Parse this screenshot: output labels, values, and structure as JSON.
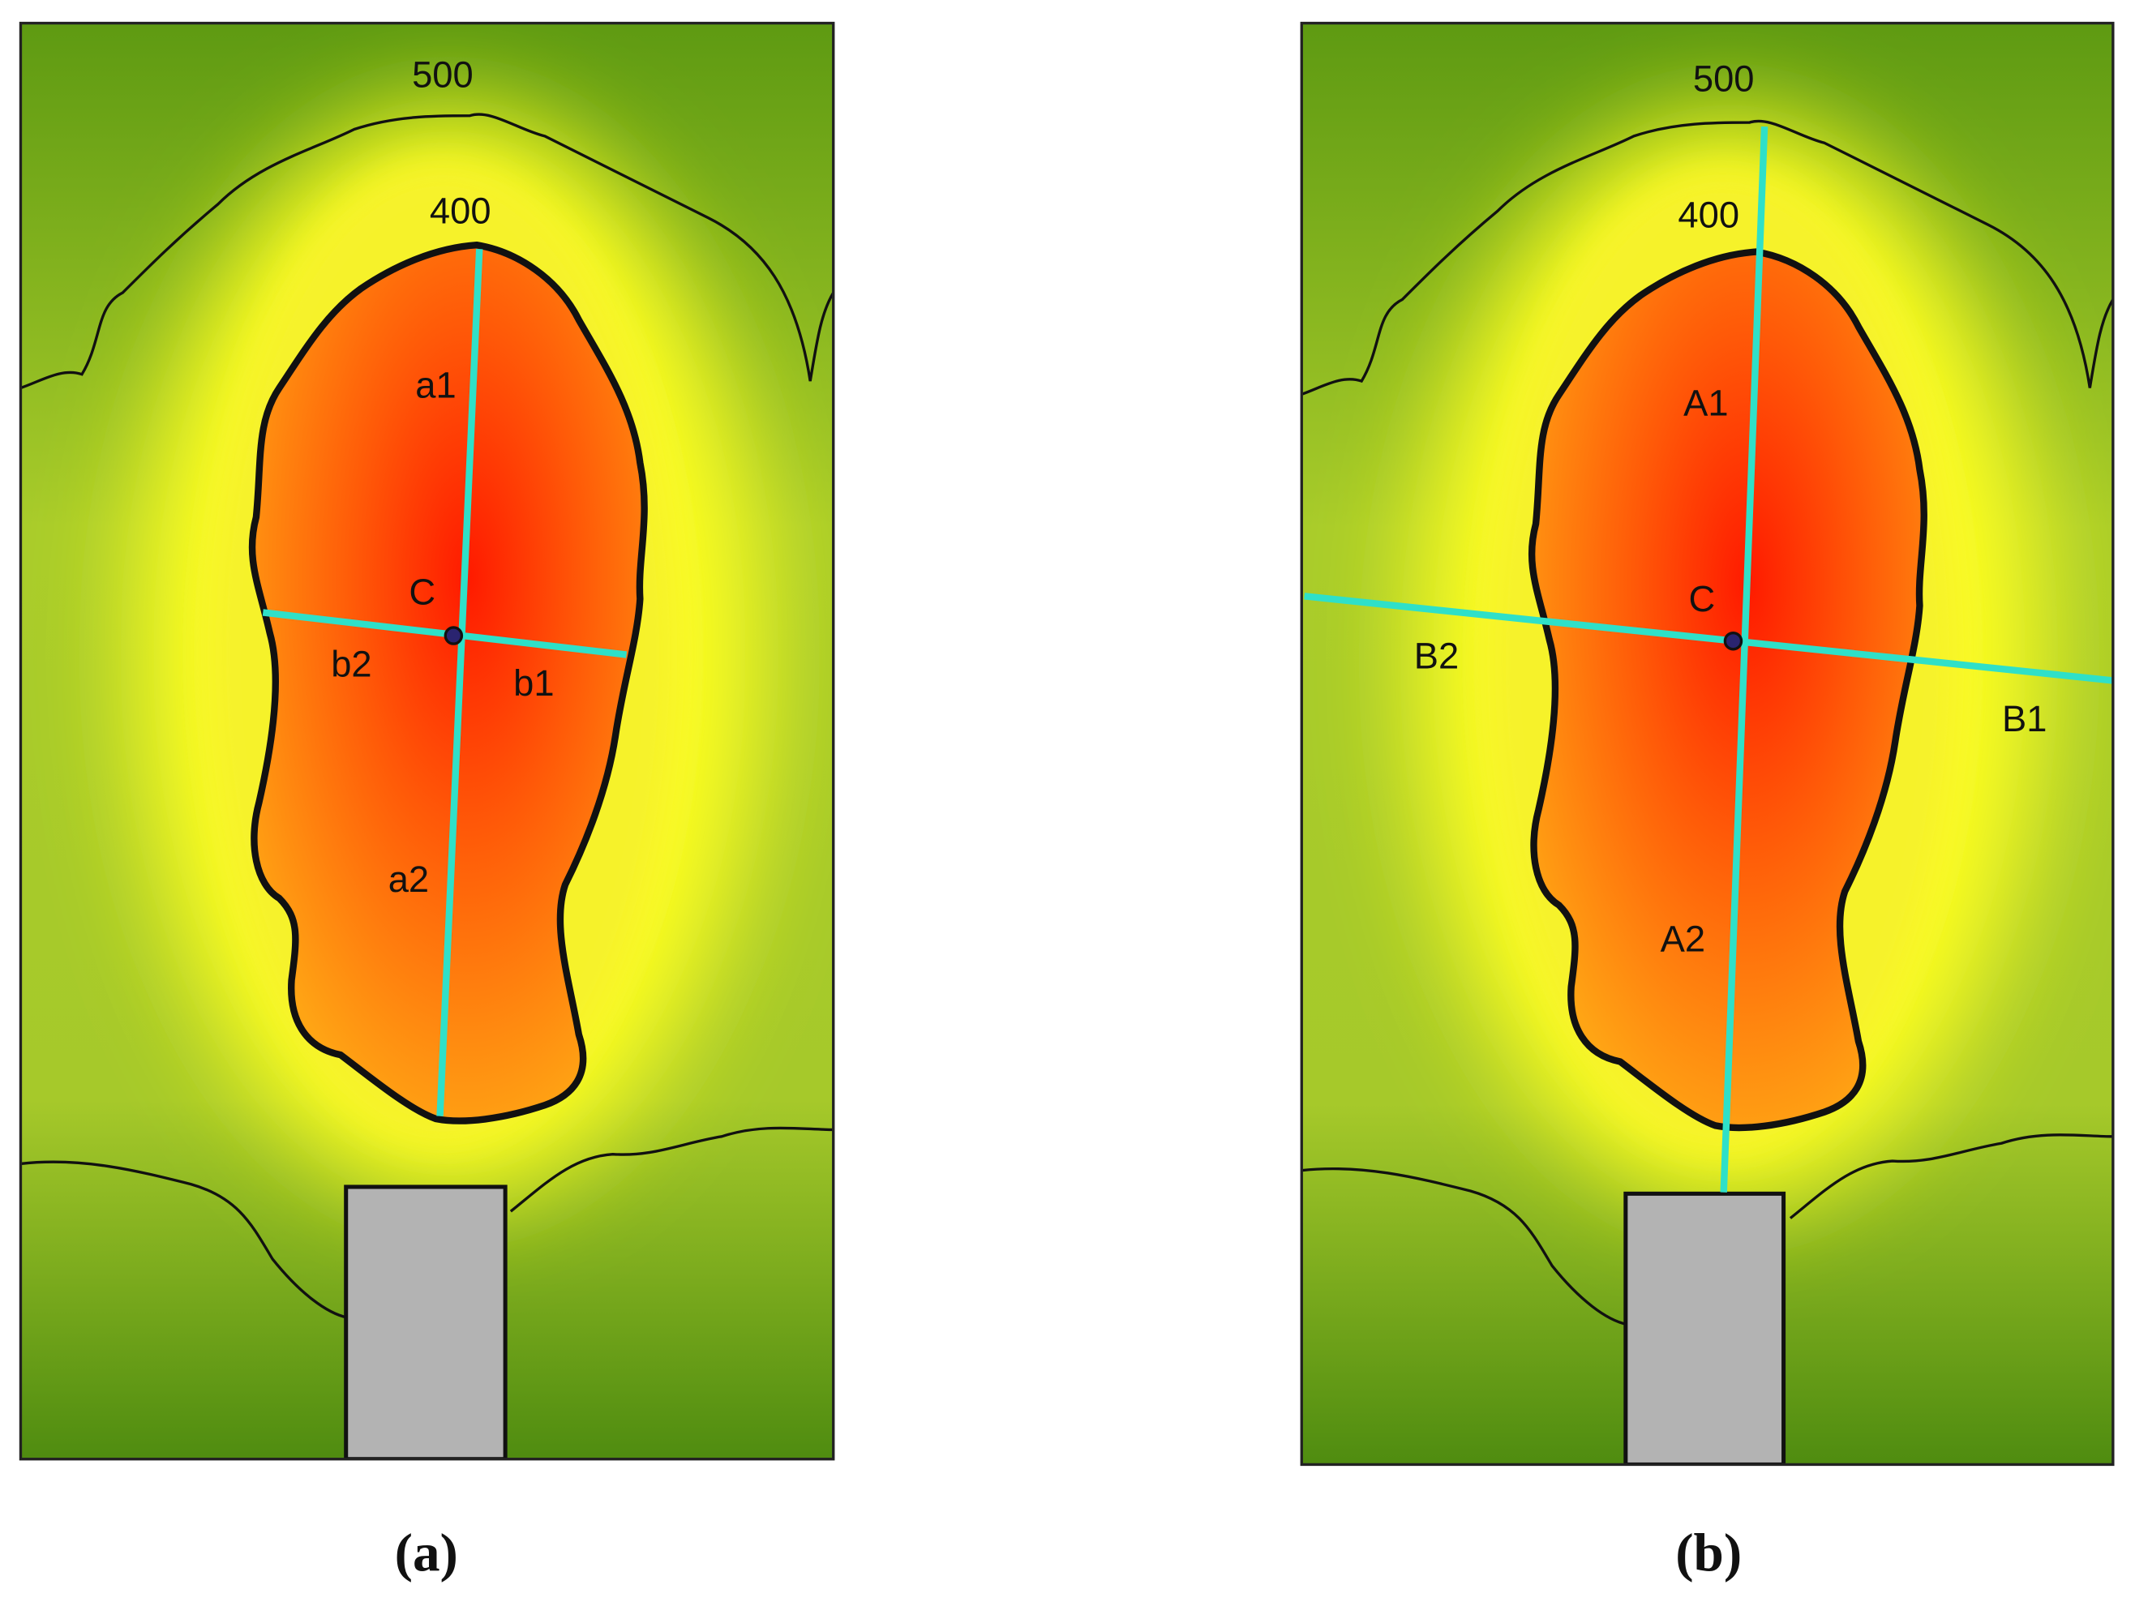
{
  "panels": [
    {
      "caption": "(a)",
      "contours": [
        500,
        400
      ],
      "labels": [
        "a1",
        "C",
        "b2",
        "b1",
        "a2"
      ]
    },
    {
      "caption": "(b)",
      "contours": [
        500,
        400
      ],
      "labels": [
        "A1",
        "C",
        "B2",
        "B1",
        "A2"
      ]
    }
  ]
}
